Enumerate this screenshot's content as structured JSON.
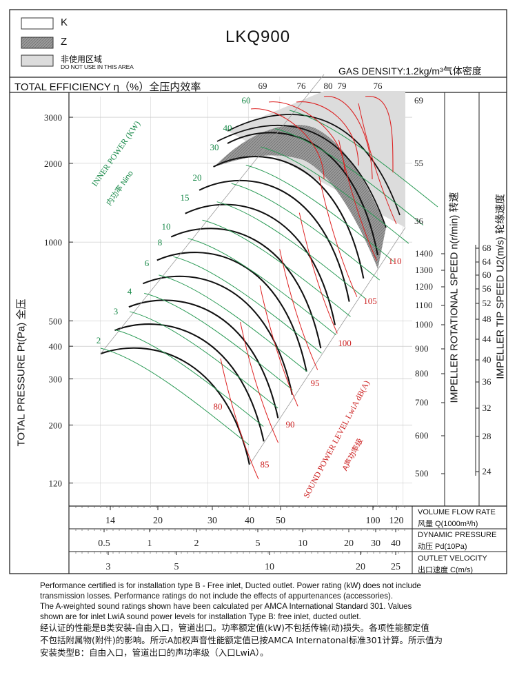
{
  "header": {
    "title": "LKQ900",
    "legend": [
      {
        "label": "K",
        "fill": "#ffffff"
      },
      {
        "label": "Z",
        "fill": "#8f8f8f"
      },
      {
        "label": "非使用区域",
        "sub": "DO NOT USE IN THIS AREA",
        "fill": "#dcdcdc"
      }
    ],
    "gas_density": "GAS DENSITY:1.2kg/m³气体密度"
  },
  "chart_data": {
    "type": "line",
    "title": "LKQ900",
    "efficiency_label": "TOTAL EFFICIENCY η（%）全压内效率",
    "efficiency_ticks": [
      "69",
      "76",
      "80",
      "79",
      "76"
    ],
    "efficiency_ticks_right": [
      "69",
      "55",
      "36"
    ],
    "ylabel": "TOTAL PRESSURE Pt(Pa) 全压",
    "y_ticks": [
      "3000",
      "2000",
      "1000",
      "500",
      "400",
      "300",
      "200",
      "120"
    ],
    "speed_label": "IMPELLER ROTATIONAL SPEED n(r/min) 转速",
    "speed_ticks": [
      "1400",
      "1300",
      "1200",
      "1100",
      "1000",
      "900",
      "800",
      "700",
      "600",
      "500"
    ],
    "tip_label": "IMPELLER TIP SPEED U2(m/s) 轮缘速度",
    "tip_ticks": [
      "68",
      "64",
      "60",
      "56",
      "52",
      "48",
      "44",
      "40",
      "36",
      "32",
      "28",
      "24"
    ],
    "power_label": "INNER POWER (KW)",
    "power_label_cn": "内功率 Nino",
    "power_ticks": [
      "60",
      "40",
      "30",
      "20",
      "15",
      "10",
      "8",
      "6",
      "4",
      "3",
      "2"
    ],
    "sound_label": "SOUND POWER LEVEL LwiA dB(A)",
    "sound_label_cn": "A声功率级",
    "sound_ticks": [
      "110",
      "105",
      "100",
      "95",
      "90",
      "85",
      "80"
    ],
    "x_axes": [
      {
        "label": "VOLUME FLOW RATE",
        "label_cn": "风量 Q(1000m³/h)",
        "ticks": [
          "14",
          "20",
          "30",
          "40",
          "50",
          "100",
          "120"
        ]
      },
      {
        "label": "DYNAMIC PRESSURE",
        "label_cn": "动压 Pd(10Pa)",
        "ticks": [
          "0.5",
          "1",
          "2",
          "5",
          "10",
          "20",
          "30",
          "40"
        ]
      },
      {
        "label": "OUTLET VELOCITY",
        "label_cn": "出口速度 C(m/s)",
        "ticks": [
          "3",
          "5",
          "10",
          "20",
          "25"
        ]
      }
    ],
    "x_scale": "log",
    "y_scale": "log",
    "grid": true,
    "speed_curves": [
      500,
      600,
      700,
      800,
      900,
      1000,
      1100,
      1200,
      1300,
      1400
    ]
  },
  "footer": {
    "en": [
      "Performance certified is for installation type B - Free inlet, Ducted outlet. Power rating (kW) does not include",
      "transmission losses. Performance ratings do not include the effects of appurtenances (accessories).",
      "The A-weighted sound ratings shown have been calculated per AMCA International Standard 301. Values",
      "shown are for inlet LwiA sound power levels for installation Type B: free inlet, ducted outlet."
    ],
    "cn": [
      "经认证的性能是B类安装-自由入口，管道出口。功率额定值(kW)不包括传输(动)损失。各项性能额定值",
      "不包括附属物(附件)的影响。所示A加权声音性能额定值已按AMCA Internatonal标准301计算。所示值为",
      "安装类型B：自由入口，管道出口的声功率级（入口LwiA）。"
    ]
  }
}
